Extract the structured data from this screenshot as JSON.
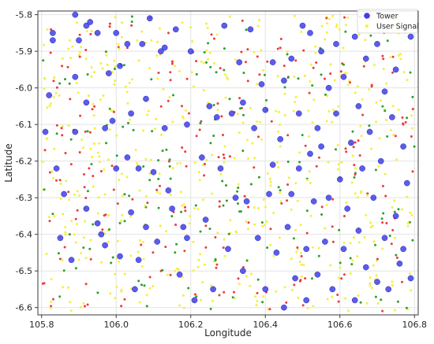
{
  "chart_data": {
    "type": "scatter",
    "xlabel": "Longitude",
    "ylabel": "Latitude",
    "xlim": [
      105.79,
      106.81
    ],
    "ylim": [
      -6.62,
      -5.79
    ],
    "x_ticks": [
      105.8,
      106.0,
      106.2,
      106.4,
      106.6,
      106.8
    ],
    "x_tick_labels": [
      "105.8",
      "106.0",
      "106.2",
      "106.4",
      "106.6",
      "106.8"
    ],
    "y_ticks": [
      -5.8,
      -5.9,
      -6.0,
      -6.1,
      -6.2,
      -6.3,
      -6.4,
      -6.5,
      -6.6
    ],
    "y_tick_labels": [
      "-5.8",
      "-5.9",
      "-6.0",
      "-6.1",
      "-6.2",
      "-6.3",
      "-6.4",
      "-6.5",
      "-6.6"
    ],
    "grid": true,
    "legend": {
      "position": "top-right",
      "entries": [
        {
          "name": "Tower",
          "color": "#3f3fe8"
        },
        {
          "name": "User Signal",
          "color": "#f5f03c"
        }
      ]
    },
    "colors": {
      "tower": "#3f3fe8",
      "user_signal_colors": [
        "#f5f03c",
        "#ee3b3b",
        "#2ca02c"
      ]
    },
    "series": [
      {
        "name": "Tower",
        "points": [
          [
            105.81,
            -6.12
          ],
          [
            105.82,
            -6.02
          ],
          [
            105.83,
            -5.87
          ],
          [
            105.83,
            -5.85
          ],
          [
            105.84,
            -6.22
          ],
          [
            105.85,
            -6.41
          ],
          [
            105.86,
            -6.29
          ],
          [
            105.88,
            -6.47
          ],
          [
            105.89,
            -5.8
          ],
          [
            105.89,
            -5.97
          ],
          [
            105.89,
            -6.12
          ],
          [
            105.9,
            -5.87
          ],
          [
            105.92,
            -5.83
          ],
          [
            105.92,
            -6.04
          ],
          [
            105.92,
            -6.33
          ],
          [
            105.93,
            -5.82
          ],
          [
            105.95,
            -5.85
          ],
          [
            105.95,
            -6.37
          ],
          [
            105.96,
            -6.4
          ],
          [
            105.97,
            -6.11
          ],
          [
            105.97,
            -6.43
          ],
          [
            105.98,
            -5.96
          ],
          [
            105.99,
            -6.09
          ],
          [
            106.0,
            -5.85
          ],
          [
            106.0,
            -6.22
          ],
          [
            106.01,
            -6.46
          ],
          [
            106.01,
            -5.94
          ],
          [
            106.03,
            -6.19
          ],
          [
            106.03,
            -5.88
          ],
          [
            106.04,
            -6.07
          ],
          [
            106.04,
            -6.34
          ],
          [
            106.05,
            -6.55
          ],
          [
            106.06,
            -6.22
          ],
          [
            106.06,
            -6.47
          ],
          [
            106.07,
            -5.88
          ],
          [
            106.08,
            -6.03
          ],
          [
            106.08,
            -6.38
          ],
          [
            106.09,
            -5.81
          ],
          [
            106.1,
            -6.23
          ],
          [
            106.11,
            -6.42
          ],
          [
            106.12,
            -5.9
          ],
          [
            106.13,
            -5.89
          ],
          [
            106.13,
            -6.11
          ],
          [
            106.14,
            -6.28
          ],
          [
            106.15,
            -6.33
          ],
          [
            106.16,
            -5.84
          ],
          [
            106.17,
            -6.51
          ],
          [
            106.18,
            -6.38
          ],
          [
            106.19,
            -6.1
          ],
          [
            106.19,
            -6.41
          ],
          [
            106.2,
            -5.9
          ],
          [
            106.21,
            -6.58
          ],
          [
            106.23,
            -6.19
          ],
          [
            106.24,
            -6.36
          ],
          [
            106.25,
            -6.05
          ],
          [
            106.26,
            -6.55
          ],
          [
            106.27,
            -6.08
          ],
          [
            106.28,
            -6.22
          ],
          [
            106.29,
            -5.83
          ],
          [
            106.3,
            -6.44
          ],
          [
            106.31,
            -6.07
          ],
          [
            106.32,
            -6.3
          ],
          [
            106.33,
            -5.93
          ],
          [
            106.34,
            -6.5
          ],
          [
            106.34,
            -6.04
          ],
          [
            106.35,
            -6.31
          ],
          [
            106.36,
            -5.84
          ],
          [
            106.37,
            -6.11
          ],
          [
            106.38,
            -6.41
          ],
          [
            106.39,
            -5.99
          ],
          [
            106.4,
            -6.06
          ],
          [
            106.4,
            -6.55
          ],
          [
            106.41,
            -6.29
          ],
          [
            106.42,
            -5.93
          ],
          [
            106.42,
            -6.21
          ],
          [
            106.43,
            -6.45
          ],
          [
            106.44,
            -6.14
          ],
          [
            106.45,
            -5.98
          ],
          [
            106.45,
            -6.6
          ],
          [
            106.46,
            -6.38
          ],
          [
            106.47,
            -5.92
          ],
          [
            106.47,
            -6.29
          ],
          [
            106.48,
            -6.52
          ],
          [
            106.49,
            -6.07
          ],
          [
            106.49,
            -6.22
          ],
          [
            106.5,
            -5.83
          ],
          [
            106.51,
            -6.44
          ],
          [
            106.51,
            -6.58
          ],
          [
            106.52,
            -6.18
          ],
          [
            106.52,
            -5.85
          ],
          [
            106.53,
            -6.31
          ],
          [
            106.54,
            -6.11
          ],
          [
            106.54,
            -6.51
          ],
          [
            106.55,
            -5.9
          ],
          [
            106.55,
            -6.16
          ],
          [
            106.56,
            -6.42
          ],
          [
            106.57,
            -6.0
          ],
          [
            106.57,
            -6.3
          ],
          [
            106.58,
            -6.55
          ],
          [
            106.59,
            -5.88
          ],
          [
            106.59,
            -6.07
          ],
          [
            106.6,
            -6.25
          ],
          [
            106.61,
            -6.44
          ],
          [
            106.61,
            -5.97
          ],
          [
            106.62,
            -6.33
          ],
          [
            106.63,
            -6.15
          ],
          [
            106.64,
            -6.58
          ],
          [
            106.64,
            -5.86
          ],
          [
            106.65,
            -6.05
          ],
          [
            106.65,
            -6.39
          ],
          [
            106.66,
            -6.22
          ],
          [
            106.67,
            -5.92
          ],
          [
            106.67,
            -6.49
          ],
          [
            106.68,
            -6.12
          ],
          [
            106.69,
            -6.3
          ],
          [
            106.7,
            -5.88
          ],
          [
            106.7,
            -6.53
          ],
          [
            106.71,
            -6.2
          ],
          [
            106.72,
            -6.01
          ],
          [
            106.72,
            -6.41
          ],
          [
            106.73,
            -6.55
          ],
          [
            106.74,
            -6.08
          ],
          [
            106.75,
            -6.35
          ],
          [
            106.75,
            -5.95
          ],
          [
            106.76,
            -6.48
          ],
          [
            106.77,
            -6.16
          ],
          [
            106.77,
            -6.44
          ],
          [
            106.78,
            -6.26
          ],
          [
            106.79,
            -6.52
          ],
          [
            106.79,
            -5.86
          ]
        ]
      },
      {
        "name": "User Signal",
        "points_note_free": true,
        "seed": 20240917,
        "count": 900
      }
    ]
  }
}
